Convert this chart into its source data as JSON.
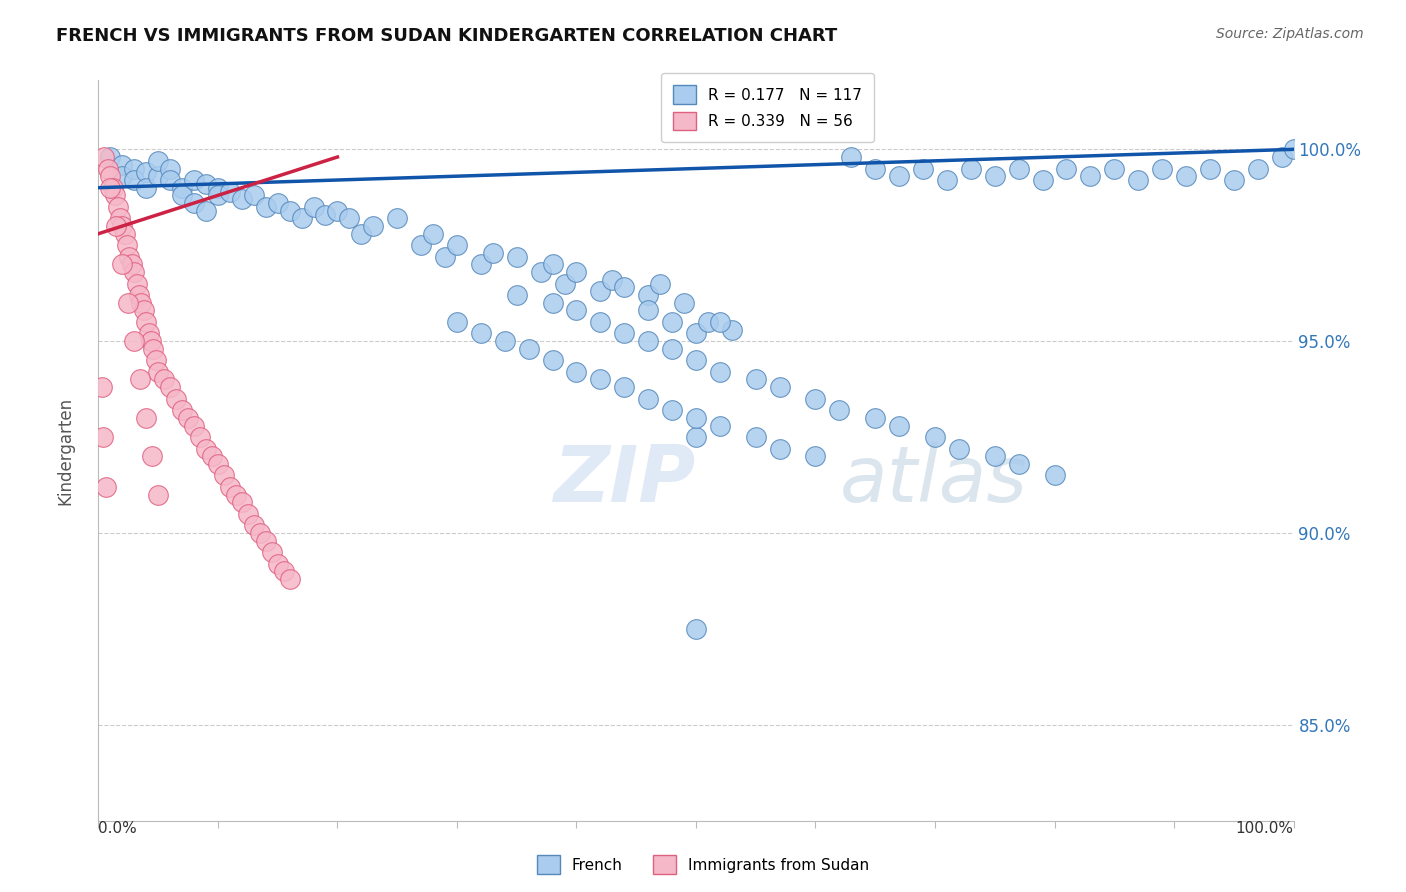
{
  "title": "FRENCH VS IMMIGRANTS FROM SUDAN KINDERGARTEN CORRELATION CHART",
  "source": "Source: ZipAtlas.com",
  "ylabel": "Kindergarten",
  "legend_box": [
    {
      "label": "French",
      "color": "#aaccee",
      "R": 0.177,
      "N": 117
    },
    {
      "label": "Immigrants from Sudan",
      "color": "#f5b8c8",
      "R": 0.339,
      "N": 56
    }
  ],
  "y_ticks": [
    85.0,
    90.0,
    95.0,
    100.0
  ],
  "y_min": 82.5,
  "y_max": 101.8,
  "x_min": 0.0,
  "x_max": 100.0,
  "blue_color": "#aaccee",
  "pink_color": "#f5b8c8",
  "blue_edge": "#5588bb",
  "pink_edge": "#e06080",
  "trend_blue": "#1155aa",
  "trend_pink": "#cc2244",
  "blue_trend_start_x": 0.0,
  "blue_trend_end_x": 100.0,
  "blue_trend_start_y": 99.0,
  "blue_trend_end_y": 100.0,
  "pink_trend_start_x": 0.0,
  "pink_trend_end_x": 20.0,
  "pink_trend_start_y": 97.8,
  "pink_trend_end_y": 99.8,
  "french_points": [
    [
      1,
      99.8
    ],
    [
      2,
      99.6
    ],
    [
      2,
      99.3
    ],
    [
      3,
      99.5
    ],
    [
      3,
      99.2
    ],
    [
      4,
      99.4
    ],
    [
      4,
      99.0
    ],
    [
      5,
      99.3
    ],
    [
      5,
      99.7
    ],
    [
      6,
      99.5
    ],
    [
      6,
      99.2
    ],
    [
      7,
      99.0
    ],
    [
      7,
      98.8
    ],
    [
      8,
      99.2
    ],
    [
      8,
      98.6
    ],
    [
      9,
      99.1
    ],
    [
      9,
      98.4
    ],
    [
      10,
      99.0
    ],
    [
      10,
      98.8
    ],
    [
      11,
      98.9
    ],
    [
      12,
      98.7
    ],
    [
      13,
      98.8
    ],
    [
      14,
      98.5
    ],
    [
      15,
      98.6
    ],
    [
      16,
      98.4
    ],
    [
      17,
      98.2
    ],
    [
      18,
      98.5
    ],
    [
      19,
      98.3
    ],
    [
      20,
      98.4
    ],
    [
      21,
      98.2
    ],
    [
      22,
      97.8
    ],
    [
      23,
      98.0
    ],
    [
      25,
      98.2
    ],
    [
      27,
      97.5
    ],
    [
      28,
      97.8
    ],
    [
      29,
      97.2
    ],
    [
      30,
      97.5
    ],
    [
      32,
      97.0
    ],
    [
      33,
      97.3
    ],
    [
      35,
      97.2
    ],
    [
      37,
      96.8
    ],
    [
      38,
      97.0
    ],
    [
      39,
      96.5
    ],
    [
      40,
      96.8
    ],
    [
      42,
      96.3
    ],
    [
      43,
      96.6
    ],
    [
      44,
      96.4
    ],
    [
      46,
      96.2
    ],
    [
      47,
      96.5
    ],
    [
      49,
      96.0
    ],
    [
      48,
      95.5
    ],
    [
      46,
      95.8
    ],
    [
      50,
      95.2
    ],
    [
      51,
      95.5
    ],
    [
      53,
      95.3
    ],
    [
      35,
      96.2
    ],
    [
      38,
      96.0
    ],
    [
      40,
      95.8
    ],
    [
      42,
      95.5
    ],
    [
      44,
      95.2
    ],
    [
      46,
      95.0
    ],
    [
      48,
      94.8
    ],
    [
      50,
      94.5
    ],
    [
      52,
      94.2
    ],
    [
      55,
      94.0
    ],
    [
      57,
      93.8
    ],
    [
      60,
      93.5
    ],
    [
      62,
      93.2
    ],
    [
      65,
      93.0
    ],
    [
      67,
      92.8
    ],
    [
      70,
      92.5
    ],
    [
      72,
      92.2
    ],
    [
      75,
      92.0
    ],
    [
      77,
      91.8
    ],
    [
      80,
      91.5
    ],
    [
      63,
      99.8
    ],
    [
      65,
      99.5
    ],
    [
      67,
      99.3
    ],
    [
      69,
      99.5
    ],
    [
      71,
      99.2
    ],
    [
      73,
      99.5
    ],
    [
      75,
      99.3
    ],
    [
      77,
      99.5
    ],
    [
      79,
      99.2
    ],
    [
      81,
      99.5
    ],
    [
      83,
      99.3
    ],
    [
      85,
      99.5
    ],
    [
      87,
      99.2
    ],
    [
      89,
      99.5
    ],
    [
      91,
      99.3
    ],
    [
      93,
      99.5
    ],
    [
      95,
      99.2
    ],
    [
      97,
      99.5
    ],
    [
      99,
      99.8
    ],
    [
      100,
      100.0
    ],
    [
      50,
      92.5
    ],
    [
      52,
      95.5
    ],
    [
      50,
      87.5
    ],
    [
      30,
      95.5
    ],
    [
      32,
      95.2
    ],
    [
      34,
      95.0
    ],
    [
      36,
      94.8
    ],
    [
      38,
      94.5
    ],
    [
      40,
      94.2
    ],
    [
      42,
      94.0
    ],
    [
      44,
      93.8
    ],
    [
      46,
      93.5
    ],
    [
      48,
      93.2
    ],
    [
      50,
      93.0
    ],
    [
      52,
      92.8
    ],
    [
      55,
      92.5
    ],
    [
      57,
      92.2
    ],
    [
      60,
      92.0
    ]
  ],
  "sudan_points": [
    [
      0.5,
      99.8
    ],
    [
      0.8,
      99.5
    ],
    [
      1.0,
      99.3
    ],
    [
      1.2,
      99.0
    ],
    [
      1.4,
      98.8
    ],
    [
      1.6,
      98.5
    ],
    [
      1.8,
      98.2
    ],
    [
      2.0,
      98.0
    ],
    [
      2.2,
      97.8
    ],
    [
      2.4,
      97.5
    ],
    [
      2.6,
      97.2
    ],
    [
      2.8,
      97.0
    ],
    [
      3.0,
      96.8
    ],
    [
      3.2,
      96.5
    ],
    [
      3.4,
      96.2
    ],
    [
      3.6,
      96.0
    ],
    [
      3.8,
      95.8
    ],
    [
      4.0,
      95.5
    ],
    [
      4.2,
      95.2
    ],
    [
      4.4,
      95.0
    ],
    [
      4.6,
      94.8
    ],
    [
      4.8,
      94.5
    ],
    [
      5.0,
      94.2
    ],
    [
      5.5,
      94.0
    ],
    [
      6.0,
      93.8
    ],
    [
      6.5,
      93.5
    ],
    [
      7.0,
      93.2
    ],
    [
      7.5,
      93.0
    ],
    [
      8.0,
      92.8
    ],
    [
      8.5,
      92.5
    ],
    [
      9.0,
      92.2
    ],
    [
      9.5,
      92.0
    ],
    [
      10.0,
      91.8
    ],
    [
      10.5,
      91.5
    ],
    [
      11.0,
      91.2
    ],
    [
      11.5,
      91.0
    ],
    [
      12.0,
      90.8
    ],
    [
      12.5,
      90.5
    ],
    [
      13.0,
      90.2
    ],
    [
      13.5,
      90.0
    ],
    [
      14.0,
      89.8
    ],
    [
      14.5,
      89.5
    ],
    [
      15.0,
      89.2
    ],
    [
      15.5,
      89.0
    ],
    [
      16.0,
      88.8
    ],
    [
      0.3,
      93.8
    ],
    [
      0.4,
      92.5
    ],
    [
      0.6,
      91.2
    ],
    [
      1.0,
      99.0
    ],
    [
      1.5,
      98.0
    ],
    [
      2.0,
      97.0
    ],
    [
      2.5,
      96.0
    ],
    [
      3.0,
      95.0
    ],
    [
      3.5,
      94.0
    ],
    [
      4.0,
      93.0
    ],
    [
      4.5,
      92.0
    ],
    [
      5.0,
      91.0
    ]
  ]
}
